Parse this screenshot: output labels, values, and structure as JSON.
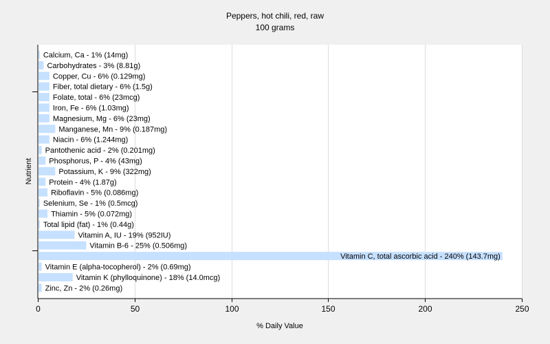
{
  "chart_data": {
    "type": "bar",
    "orientation": "horizontal",
    "title": "Peppers, hot chili, red, raw",
    "subtitle": "100 grams",
    "xlabel": "% Daily Value",
    "ylabel": "Nutrient",
    "xlim": [
      0,
      250
    ],
    "xticks": [
      0,
      50,
      100,
      150,
      200,
      250
    ],
    "grid": true,
    "legend": "none",
    "bar_color": "#c6e0ff",
    "categories": [
      "Calcium, Ca",
      "Carbohydrates",
      "Copper, Cu",
      "Fiber, total dietary",
      "Folate, total",
      "Iron, Fe",
      "Magnesium, Mg",
      "Manganese, Mn",
      "Niacin",
      "Pantothenic acid",
      "Phosphorus, P",
      "Potassium, K",
      "Protein",
      "Riboflavin",
      "Selenium, Se",
      "Thiamin",
      "Total lipid (fat)",
      "Vitamin A, IU",
      "Vitamin B-6",
      "Vitamin C, total ascorbic acid",
      "Vitamin E (alpha-tocopherol)",
      "Vitamin K (phylloquinone)",
      "Zinc, Zn"
    ],
    "values": [
      1,
      3,
      6,
      6,
      6,
      6,
      6,
      9,
      6,
      2,
      4,
      9,
      4,
      5,
      1,
      5,
      1,
      19,
      25,
      240,
      2,
      18,
      2
    ],
    "labels": [
      "Calcium, Ca - 1% (14mg)",
      "Carbohydrates - 3% (8.81g)",
      "Copper, Cu - 6% (0.129mg)",
      "Fiber, total dietary - 6% (1.5g)",
      "Folate, total - 6% (23mcg)",
      "Iron, Fe - 6% (1.03mg)",
      "Magnesium, Mg - 6% (23mg)",
      "Manganese, Mn - 9% (0.187mg)",
      "Niacin - 6% (1.244mg)",
      "Pantothenic acid - 2% (0.201mg)",
      "Phosphorus, P - 4% (43mg)",
      "Potassium, K - 9% (322mg)",
      "Protein - 4% (1.87g)",
      "Riboflavin - 5% (0.086mg)",
      "Selenium, Se - 1% (0.5mcg)",
      "Thiamin - 5% (0.072mg)",
      "Total lipid (fat) - 1% (0.44g)",
      "Vitamin A, IU - 19% (952IU)",
      "Vitamin B-6 - 25% (0.506mg)",
      "Vitamin C, total ascorbic acid - 240% (143.7mg)",
      "Vitamin E (alpha-tocopherol) - 2% (0.69mg)",
      "Vitamin K (phylloquinone) - 18% (14.0mcg)",
      "Zinc, Zn - 2% (0.26mg)"
    ]
  }
}
